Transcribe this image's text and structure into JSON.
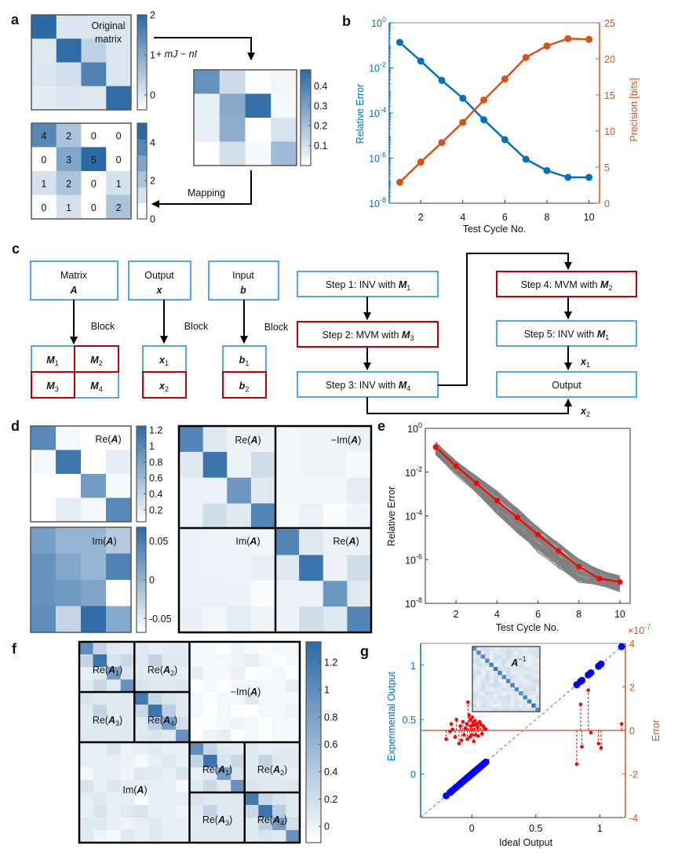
{
  "panel_labels": [
    "a",
    "b",
    "c",
    "d",
    "e",
    "f",
    "g"
  ],
  "panel_a": {
    "title_lines": [
      "Original",
      "matrix"
    ],
    "transform_label": {
      "plus": "+ ",
      "mJ": "mJ",
      "minus": "  − ",
      "nI": "nI"
    },
    "mapping_label": "Mapping"
  },
  "panel_c": {
    "top_boxes": [
      {
        "title": "Matrix",
        "sym": "A"
      },
      {
        "title": "Output",
        "sym": "x"
      },
      {
        "title": "Input",
        "sym": "b"
      }
    ],
    "block_label": "Block",
    "matrix_blocks": [
      {
        "sym": "M",
        "sub": "1"
      },
      {
        "sym": "M",
        "sub": "2"
      },
      {
        "sym": "M",
        "sub": "3"
      },
      {
        "sym": "M",
        "sub": "4"
      }
    ],
    "output_blocks": [
      {
        "sym": "x",
        "sub": "1"
      },
      {
        "sym": "x",
        "sub": "2"
      }
    ],
    "input_blocks": [
      {
        "sym": "b",
        "sub": "1"
      },
      {
        "sym": "b",
        "sub": "2"
      }
    ],
    "steps": [
      {
        "text": "Step 1: INV with ",
        "sym": "M",
        "sub": "1"
      },
      {
        "text": "Step 2: MVM with ",
        "sym": "M",
        "sub": "3"
      },
      {
        "text": "Step 3: INV with ",
        "sym": "M",
        "sub": "4"
      },
      {
        "text": "Step 4: MVM with ",
        "sym": "M",
        "sub": "2"
      },
      {
        "text": "Step 5: INV with ",
        "sym": "M",
        "sub": "1"
      }
    ],
    "output_label": "Output",
    "x1_label": {
      "sym": "x",
      "sub": "1"
    },
    "x2_label": {
      "sym": "x",
      "sub": "2"
    },
    "colors": {
      "inv": "#4da6ff",
      "mvm": "#c00000"
    }
  },
  "colormap": {
    "low": "#ffffff",
    "high": "#2c6aa5"
  },
  "chart_data": [
    {
      "panel": "a",
      "type": "heatmap",
      "values": [
        [
          2.0,
          0.05,
          0.02,
          0.03
        ],
        [
          0.0,
          1.95,
          0.35,
          0.02
        ],
        [
          0.02,
          0.15,
          1.6,
          0.03
        ],
        [
          -0.05,
          0.05,
          0.0,
          1.95
        ]
      ],
      "clim": [
        -0.37,
        2
      ],
      "colorbar_ticks": [
        0,
        1,
        2
      ]
    },
    {
      "panel": "a",
      "type": "heatmap",
      "values": [
        [
          0.35,
          0.12,
          0.01,
          0.03
        ],
        [
          0.05,
          0.27,
          0.46,
          0.02
        ],
        [
          0.05,
          0.26,
          0.0,
          0.09
        ],
        [
          0.0,
          0.1,
          0.02,
          0.22
        ]
      ],
      "clim": [
        0,
        0.48
      ],
      "colorbar_ticks": [
        0.1,
        0.2,
        0.3,
        0.4
      ]
    },
    {
      "panel": "a",
      "type": "heatmap",
      "values": [
        [
          4,
          2,
          0,
          0
        ],
        [
          0,
          3,
          5,
          0
        ],
        [
          1,
          2,
          0,
          1
        ],
        [
          0,
          1,
          0,
          2
        ]
      ],
      "clim": [
        0,
        5
      ],
      "colorbar_ticks": [
        0,
        2,
        4
      ],
      "colorbar_levels": 6,
      "cell_labels": true
    },
    {
      "panel": "b",
      "type": "line",
      "x": [
        1,
        2,
        3,
        4,
        5,
        6,
        7,
        8,
        9,
        10
      ],
      "series": [
        {
          "axis": "left",
          "scale": "log",
          "color": "#0072bd",
          "values": [
            0.135,
            0.02,
            0.0028,
            0.00045,
            5e-05,
            6.6e-06,
            8.9e-07,
            2.8e-07,
            1.4e-07,
            1.4e-07
          ]
        },
        {
          "axis": "right",
          "scale": "linear",
          "color": "#d95319",
          "values": [
            2.9,
            5.7,
            8.4,
            11.2,
            14.3,
            17.2,
            20.2,
            21.8,
            22.8,
            22.7
          ]
        }
      ],
      "xlabel": "Test Cycle No.",
      "ylabel_left": "Relative Error",
      "ylabel_right": "Precision [bits]",
      "xlim": [
        0.5,
        10.5
      ],
      "xticks": [
        2,
        4,
        6,
        8,
        10
      ],
      "ylim_left": [
        1e-08,
        1
      ],
      "yticks_left_exponents": [
        0,
        -2,
        -4,
        -6,
        -8
      ],
      "ylim_right": [
        0,
        25
      ],
      "yticks_right": [
        0,
        5,
        10,
        15,
        20,
        25
      ]
    },
    {
      "panel": "d",
      "type": "heatmap",
      "label": {
        "pre": "Re(",
        "sym": "A",
        "post": ")"
      },
      "values": [
        [
          1.0,
          0.1,
          0.02,
          0.02
        ],
        [
          0.1,
          1.15,
          0.02,
          0.2
        ],
        [
          0.02,
          0.03,
          0.85,
          0.1
        ],
        [
          0.02,
          0.2,
          0.1,
          1.0
        ]
      ],
      "clim": [
        0.05,
        1.25
      ],
      "colorbar_ticks": [
        0.2,
        0.4,
        0.6,
        0.8,
        1,
        1.2
      ]
    },
    {
      "panel": "d",
      "type": "heatmap",
      "label": {
        "pre": "Im(",
        "sym": "A",
        "post": ")"
      },
      "values": [
        [
          0.02,
          0.0,
          0.0,
          -0.02
        ],
        [
          0.03,
          0.012,
          0.0,
          0.045
        ],
        [
          0.03,
          0.025,
          0.015,
          -0.068
        ],
        [
          0.035,
          -0.03,
          0.065,
          0.01
        ]
      ],
      "clim": [
        -0.068,
        0.068
      ],
      "colorbar_ticks": [
        -0.05,
        0,
        0.05
      ]
    },
    {
      "panel": "d",
      "type": "heatmap",
      "composition": "[[Re(A), -Im(A)], [Im(A), Re(A)]]",
      "block_labels": [
        {
          "pre": "Re(",
          "sym": "A",
          "post": ")"
        },
        {
          "pre": "−Im(",
          "sym": "A",
          "post": ")"
        },
        {
          "pre": "Im(",
          "sym": "A",
          "post": ")"
        },
        {
          "pre": "Re(",
          "sym": "A",
          "post": ")"
        }
      ],
      "clim": [
        -0.1,
        1.25
      ]
    },
    {
      "panel": "e",
      "type": "line",
      "x": [
        1,
        2,
        3,
        4,
        5,
        6,
        7,
        8,
        9,
        10
      ],
      "mean": [
        0.14,
        0.019,
        0.0031,
        0.0005,
        8.5e-05,
        1.4e-05,
        2.5e-06,
        4.7e-07,
        1.35e-07,
        9.5e-08
      ],
      "trial_range_lower": [
        0.06,
        0.007,
        0.001,
        0.0001,
        1.5e-05,
        2e-06,
        3.5e-07,
        8e-08,
        5e-08,
        3e-08
      ],
      "trial_range_upper": [
        0.25,
        0.035,
        0.007,
        0.0015,
        0.00025,
        4e-05,
        7e-06,
        1.2e-06,
        4e-07,
        2e-07
      ],
      "mean_color": "#ff0000",
      "trial_color": "#808080",
      "xlabel": "Test Cycle No.",
      "ylabel": "Relative Error",
      "xlim": [
        0.5,
        10.5
      ],
      "xticks": [
        2,
        4,
        6,
        8,
        10
      ],
      "ylim": [
        1e-08,
        1
      ],
      "yticks_exponents": [
        0,
        -2,
        -4,
        -6,
        -8
      ]
    },
    {
      "panel": "f",
      "type": "heatmap",
      "composition": "[[Re(A), -Im(A)], [Im(A), Re(A)]]",
      "re_values": [
        [
          1.0,
          0.3,
          0.1,
          0.08,
          0.1,
          0.05,
          0.08,
          0.08
        ],
        [
          0.3,
          1.25,
          0.15,
          0.25,
          0.1,
          0.3,
          0.1,
          0.1
        ],
        [
          0.05,
          0.1,
          0.85,
          0.15,
          0.1,
          0.1,
          0.08,
          0.05
        ],
        [
          0.1,
          0.25,
          0.1,
          0.95,
          0.15,
          0.1,
          0.1,
          0.12
        ],
        [
          0.15,
          0.1,
          0.1,
          0.1,
          1.2,
          0.25,
          0.15,
          0.1
        ],
        [
          0.1,
          0.3,
          0.1,
          0.1,
          0.25,
          1.25,
          0.35,
          0.1
        ],
        [
          0.08,
          0.1,
          0.1,
          0.1,
          0.1,
          0.35,
          0.85,
          0.2
        ],
        [
          0.1,
          0.1,
          0.1,
          0.1,
          0.1,
          0.15,
          0.1,
          0.95
        ]
      ],
      "im_values": [
        [
          0.05,
          0.05,
          0.15,
          0.0,
          0.05,
          0.08,
          0.05,
          0.05
        ],
        [
          0.05,
          0.05,
          0.05,
          0.02,
          -0.05,
          0.05,
          0.1,
          0.05
        ],
        [
          -0.05,
          0.05,
          0.05,
          -0.02,
          0.1,
          0.08,
          0.05,
          0.15
        ],
        [
          0.15,
          0.05,
          0.12,
          0.05,
          0.05,
          0.05,
          0.05,
          -0.05
        ],
        [
          0.05,
          0.1,
          0.05,
          0.05,
          -0.1,
          0.05,
          0.05,
          0.05
        ],
        [
          0.05,
          0.15,
          0.05,
          0.1,
          0.15,
          0.05,
          0.05,
          0.0
        ],
        [
          0.1,
          0.1,
          0.05,
          0.0,
          0.05,
          0.1,
          0.05,
          0.05
        ],
        [
          0.1,
          0.0,
          -0.05,
          0.1,
          0.05,
          0.1,
          0.05,
          0.05
        ]
      ],
      "block_labels": [
        {
          "pre": "Re(",
          "sym": "A",
          "sub": "1",
          "post": ")"
        },
        {
          "pre": "Re(",
          "sym": "A",
          "sub": "2",
          "post": ")"
        },
        {
          "pre": "Re(",
          "sym": "A",
          "sub": "3",
          "post": ")"
        },
        {
          "pre": "Re(",
          "sym": "A",
          "sub": "4",
          "post": ")"
        },
        {
          "pre": "−Im(",
          "sym": "A",
          "sub": "",
          "post": ")"
        },
        {
          "pre": "Im(",
          "sym": "A",
          "sub": "",
          "post": ")"
        },
        {
          "pre": "Re(",
          "sym": "A",
          "sub": "1",
          "post": ")"
        },
        {
          "pre": "Re(",
          "sym": "A",
          "sub": "2",
          "post": ")"
        },
        {
          "pre": "Re(",
          "sym": "A",
          "sub": "3",
          "post": ")"
        },
        {
          "pre": "Re(",
          "sym": "A",
          "sub": "4",
          "post": ")"
        }
      ],
      "clim": [
        -0.12,
        1.35
      ],
      "colorbar_ticks": [
        0,
        0.2,
        0.4,
        0.6,
        0.8,
        1,
        1.2
      ]
    },
    {
      "panel": "g",
      "type": "scatter",
      "ideal": [
        -0.2,
        -0.17,
        -0.16,
        -0.15,
        -0.13,
        -0.12,
        -0.1,
        -0.09,
        -0.08,
        -0.07,
        -0.06,
        -0.05,
        -0.04,
        -0.035,
        -0.03,
        -0.02,
        -0.015,
        -0.01,
        -0.005,
        0,
        0.005,
        0.01,
        0.015,
        0.02,
        0.025,
        0.03,
        0.04,
        0.045,
        0.05,
        0.06,
        0.07,
        0.08,
        0.09,
        0.1,
        0.11,
        0.82,
        0.85,
        0.86,
        0.91,
        0.93,
        0.99,
        1.01,
        1.17
      ],
      "error_e7": [
        -0.4,
        -0.05,
        0.3,
        0.05,
        -0.3,
        0.5,
        -0.6,
        0.2,
        -0.45,
        0.4,
        -0.2,
        0.1,
        0.3,
        -0.4,
        1.3,
        0.7,
        -0.3,
        0.5,
        0.2,
        -0.2,
        0.6,
        0.35,
        -0.5,
        0.25,
        0.45,
        -0.2,
        0.3,
        0.15,
        -0.25,
        0.4,
        0.3,
        -0.15,
        0.2,
        0.1,
        0.05,
        -1.55,
        1.2,
        -0.75,
        1.85,
        -0.1,
        -0.6,
        -0.8,
        0.3
      ],
      "output_color": "#0000ff",
      "error_color": "#ff0000",
      "xlabel": "Ideal Output",
      "ylabel_left": "Experimental Output",
      "ylabel_right": "Error",
      "right_axis_multiplier": {
        "base": "×10",
        "exp": "-7"
      },
      "xlim": [
        -0.4,
        1.2
      ],
      "xticks": [
        0,
        0.5,
        1
      ],
      "ylim_left": [
        -0.4,
        1.2
      ],
      "yticks_left": [
        0,
        0.5,
        1
      ],
      "ylim_right": [
        -4,
        4
      ],
      "yticks_right": [
        -4,
        -2,
        0,
        2,
        4
      ],
      "inset": {
        "label": {
          "sym": "A",
          "sup": "−1"
        },
        "diagonal": [
          0.75,
          0.8,
          0.78,
          0.8,
          0.85,
          0.9,
          0.85,
          0.8,
          0.8,
          0.85,
          0.8,
          0.75,
          0.8,
          0.85,
          0.9,
          0.8
        ]
      }
    }
  ]
}
